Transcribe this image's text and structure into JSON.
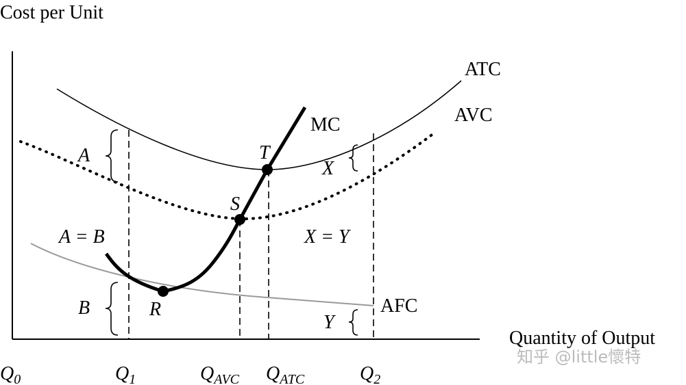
{
  "axes": {
    "y_title": "Cost per Unit",
    "x_title": "Quantity of Output"
  },
  "curves": {
    "atc": "ATC",
    "avc": "AVC",
    "mc": "MC",
    "afc": "AFC"
  },
  "points": {
    "t": "T",
    "s": "S",
    "r": "R"
  },
  "regions": {
    "a": "A",
    "b": "B",
    "a_eq_b": "A = B",
    "x": "X",
    "y": "Y",
    "x_eq_y": "X = Y"
  },
  "quantities": [
    {
      "main": "Q",
      "sub": "0"
    },
    {
      "main": "Q",
      "sub": "1"
    },
    {
      "main": "Q",
      "sub": "AVC"
    },
    {
      "main": "Q",
      "sub": "ATC"
    },
    {
      "main": "Q",
      "sub": "2"
    }
  ],
  "watermark": "知乎 @little懷特"
}
